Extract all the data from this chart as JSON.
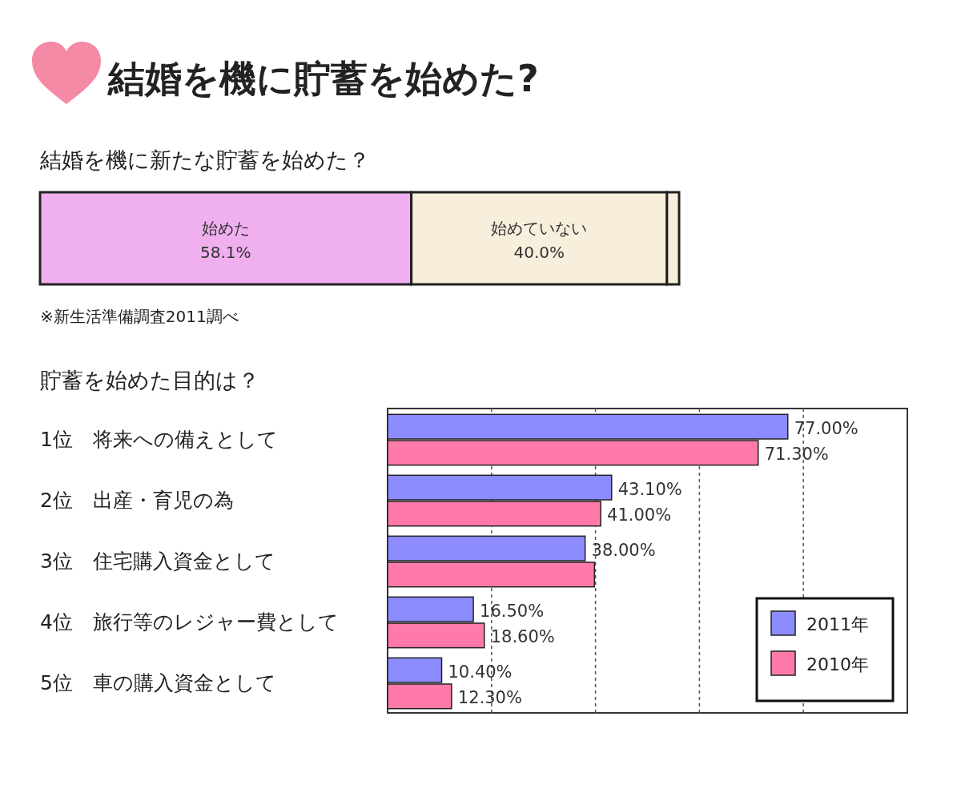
{
  "chart_data": [
    {
      "type": "bar",
      "orientation": "horizontal",
      "stacked": true,
      "title": "結婚を機に貯蓄を始めた?",
      "subtitle": "結婚を機に新たな貯蓄を始めた？",
      "categories": [
        null
      ],
      "xlim": [
        0,
        100
      ],
      "tick_labels": false,
      "series": [
        {
          "name": "始めた",
          "color": "#f0b0f0",
          "values": [
            58.1
          ],
          "value_labels": [
            "58.1%"
          ]
        },
        {
          "name": "始めていない",
          "color": "#f8eedc",
          "values": [
            40.0
          ],
          "value_labels": [
            "40.0%"
          ]
        },
        {
          "color": "#f8eedc",
          "values": [
            1.9
          ]
        }
      ],
      "annotations": [
        "※新生活準備調査2011調べ"
      ]
    },
    {
      "type": "bar",
      "orientation": "horizontal",
      "title": "貯蓄を始めた目的は？",
      "categories": [
        "1位　将来への備えとして",
        "2位　出産・育児の為",
        "3位　住宅購入資金として",
        "4位　旅行等のレジャー費として",
        "5位　車の購入資金として"
      ],
      "xlim": [
        0,
        100
      ],
      "xticks": [
        {
          "value": 20,
          "label": null
        },
        {
          "value": 40,
          "label": null
        },
        {
          "value": 60,
          "label": null
        },
        {
          "value": 80,
          "label": null
        }
      ],
      "grid": "x",
      "tick_labels": "y",
      "legend": "bottom right",
      "series": [
        {
          "name": "2011年",
          "color": "#8c8cff",
          "values": [
            77.0,
            43.1,
            38.0,
            16.5,
            10.4
          ],
          "value_labels": [
            "77.00%",
            "43.10%",
            "38.00%",
            "16.50%",
            "10.40%"
          ]
        },
        {
          "name": "2010年",
          "color": "#ff7aaa",
          "values": [
            71.3,
            41.0,
            39.8,
            18.6,
            12.3
          ],
          "value_labels": [
            "71.30%",
            "41.00%",
            null,
            "18.60%",
            "12.30%"
          ]
        }
      ]
    }
  ]
}
